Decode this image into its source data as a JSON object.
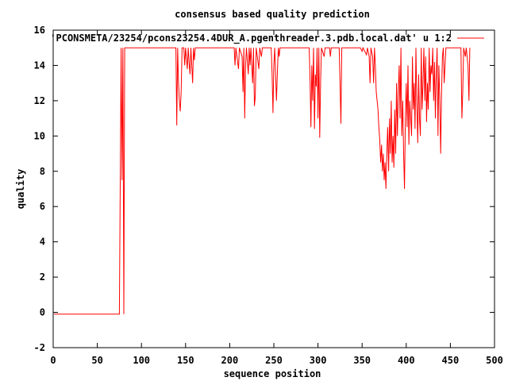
{
  "chart_data": {
    "type": "line",
    "title": "consensus based quality prediction",
    "xlabel": "sequence position",
    "ylabel": "quality",
    "xlim": [
      0,
      500
    ],
    "ylim": [
      -2,
      16
    ],
    "xticks": [
      0,
      50,
      100,
      150,
      200,
      250,
      300,
      350,
      400,
      450,
      500
    ],
    "yticks": [
      -2,
      0,
      2,
      4,
      6,
      8,
      10,
      12,
      14,
      16
    ],
    "grid": false,
    "legend_position": "top-right",
    "series": [
      {
        "name": "'PCONSMETA/23254/pcons23254.4DUR_A.pgenthreader.3.pdb.local.dat' u 1:2",
        "color": "#ff0000",
        "points": [
          [
            1,
            -0.1
          ],
          [
            75,
            -0.1
          ],
          [
            76,
            7.5
          ],
          [
            77,
            15
          ],
          [
            78,
            7.5
          ],
          [
            79,
            15
          ],
          [
            80,
            -0.1
          ],
          [
            81,
            15
          ],
          [
            139,
            15
          ],
          [
            140,
            10.6
          ],
          [
            141,
            15
          ],
          [
            142,
            13
          ],
          [
            143,
            12
          ],
          [
            144,
            11.4
          ],
          [
            145,
            12.5
          ],
          [
            146,
            15
          ],
          [
            148,
            15
          ],
          [
            149,
            14
          ],
          [
            150,
            15
          ],
          [
            152,
            13.8
          ],
          [
            153,
            15
          ],
          [
            154,
            14.2
          ],
          [
            155,
            13.5
          ],
          [
            156,
            15
          ],
          [
            157,
            14
          ],
          [
            158,
            13
          ],
          [
            159,
            15
          ],
          [
            160,
            14.3
          ],
          [
            161,
            15
          ],
          [
            205,
            15
          ],
          [
            206,
            14
          ],
          [
            207,
            15
          ],
          [
            210,
            13.8
          ],
          [
            211,
            15
          ],
          [
            214,
            14.5
          ],
          [
            215,
            12.5
          ],
          [
            216,
            15
          ],
          [
            217,
            11
          ],
          [
            218,
            14
          ],
          [
            219,
            15
          ],
          [
            221,
            13.5
          ],
          [
            222,
            15
          ],
          [
            223,
            14
          ],
          [
            224,
            15
          ],
          [
            226,
            13
          ],
          [
            227,
            15
          ],
          [
            228,
            11.7
          ],
          [
            229,
            12.2
          ],
          [
            230,
            15
          ],
          [
            233,
            13.8
          ],
          [
            234,
            15
          ],
          [
            236,
            14.5
          ],
          [
            237,
            15
          ],
          [
            247,
            15
          ],
          [
            248,
            13.5
          ],
          [
            249,
            11.3
          ],
          [
            250,
            14
          ],
          [
            251,
            15
          ],
          [
            253,
            12
          ],
          [
            254,
            13.5
          ],
          [
            255,
            15
          ],
          [
            256,
            14.5
          ],
          [
            257,
            15
          ],
          [
            290,
            15
          ],
          [
            291,
            13.2
          ],
          [
            292,
            10.5
          ],
          [
            293,
            14
          ],
          [
            294,
            12
          ],
          [
            295,
            15
          ],
          [
            296,
            10.4
          ],
          [
            297,
            13.5
          ],
          [
            298,
            12.8
          ],
          [
            299,
            15
          ],
          [
            300,
            11
          ],
          [
            301,
            15
          ],
          [
            302,
            9.9
          ],
          [
            303,
            13
          ],
          [
            304,
            15
          ],
          [
            307,
            14.5
          ],
          [
            308,
            15
          ],
          [
            313,
            15
          ],
          [
            314,
            14.5
          ],
          [
            315,
            15
          ],
          [
            324,
            15
          ],
          [
            325,
            13
          ],
          [
            326,
            10.7
          ],
          [
            327,
            15
          ],
          [
            348,
            15
          ],
          [
            350,
            14.8
          ],
          [
            351,
            15
          ],
          [
            355,
            14.6
          ],
          [
            356,
            15
          ],
          [
            358,
            14.5
          ],
          [
            359,
            13
          ],
          [
            360,
            15
          ],
          [
            362,
            14.5
          ],
          [
            363,
            13
          ],
          [
            364,
            15
          ],
          [
            365,
            14
          ],
          [
            366,
            12.5
          ],
          [
            367,
            12
          ],
          [
            368,
            11.5
          ],
          [
            369,
            10.5
          ],
          [
            370,
            9.8
          ],
          [
            371,
            8.5
          ],
          [
            372,
            9.5
          ],
          [
            373,
            8
          ],
          [
            374,
            9
          ],
          [
            375,
            7.5
          ],
          [
            376,
            8.5
          ],
          [
            377,
            7
          ],
          [
            378,
            9
          ],
          [
            379,
            10.5
          ],
          [
            380,
            8
          ],
          [
            381,
            11
          ],
          [
            382,
            9
          ],
          [
            383,
            12
          ],
          [
            384,
            8.5
          ],
          [
            385,
            10
          ],
          [
            386,
            8.2
          ],
          [
            387,
            11.5
          ],
          [
            388,
            9
          ],
          [
            389,
            13
          ],
          [
            390,
            10
          ],
          [
            391,
            12.5
          ],
          [
            392,
            14
          ],
          [
            393,
            11
          ],
          [
            394,
            15
          ],
          [
            395,
            10
          ],
          [
            396,
            12
          ],
          [
            397,
            9
          ],
          [
            398,
            7
          ],
          [
            399,
            11
          ],
          [
            400,
            13
          ],
          [
            401,
            10.5
          ],
          [
            402,
            14
          ],
          [
            403,
            9.5
          ],
          [
            404,
            12
          ],
          [
            405,
            11
          ],
          [
            406,
            10
          ],
          [
            407,
            14.5
          ],
          [
            408,
            11.5
          ],
          [
            409,
            13
          ],
          [
            410,
            10.4
          ],
          [
            411,
            15
          ],
          [
            412,
            12
          ],
          [
            413,
            9.6
          ],
          [
            414,
            13.5
          ],
          [
            415,
            11
          ],
          [
            416,
            10
          ],
          [
            417,
            15
          ],
          [
            418,
            11.5
          ],
          [
            419,
            13
          ],
          [
            420,
            15
          ],
          [
            421,
            12
          ],
          [
            422,
            14.5
          ],
          [
            423,
            10.8
          ],
          [
            424,
            13
          ],
          [
            425,
            11.5
          ],
          [
            426,
            15
          ],
          [
            427,
            12.5
          ],
          [
            428,
            14
          ],
          [
            429,
            13.5
          ],
          [
            430,
            15
          ],
          [
            431,
            12
          ],
          [
            432,
            14.2
          ],
          [
            433,
            11
          ],
          [
            434,
            13.5
          ],
          [
            435,
            15
          ],
          [
            436,
            10
          ],
          [
            437,
            14
          ],
          [
            438,
            12
          ],
          [
            439,
            9
          ],
          [
            440,
            12.5
          ],
          [
            441,
            14.5
          ],
          [
            442,
            15
          ],
          [
            443,
            13
          ],
          [
            444,
            14
          ],
          [
            445,
            15
          ],
          [
            462,
            15
          ],
          [
            463,
            11
          ],
          [
            464,
            12.5
          ],
          [
            465,
            15
          ],
          [
            467,
            14.5
          ],
          [
            468,
            15
          ],
          [
            470,
            14
          ],
          [
            471,
            12
          ],
          [
            472,
            15
          ]
        ]
      }
    ]
  }
}
